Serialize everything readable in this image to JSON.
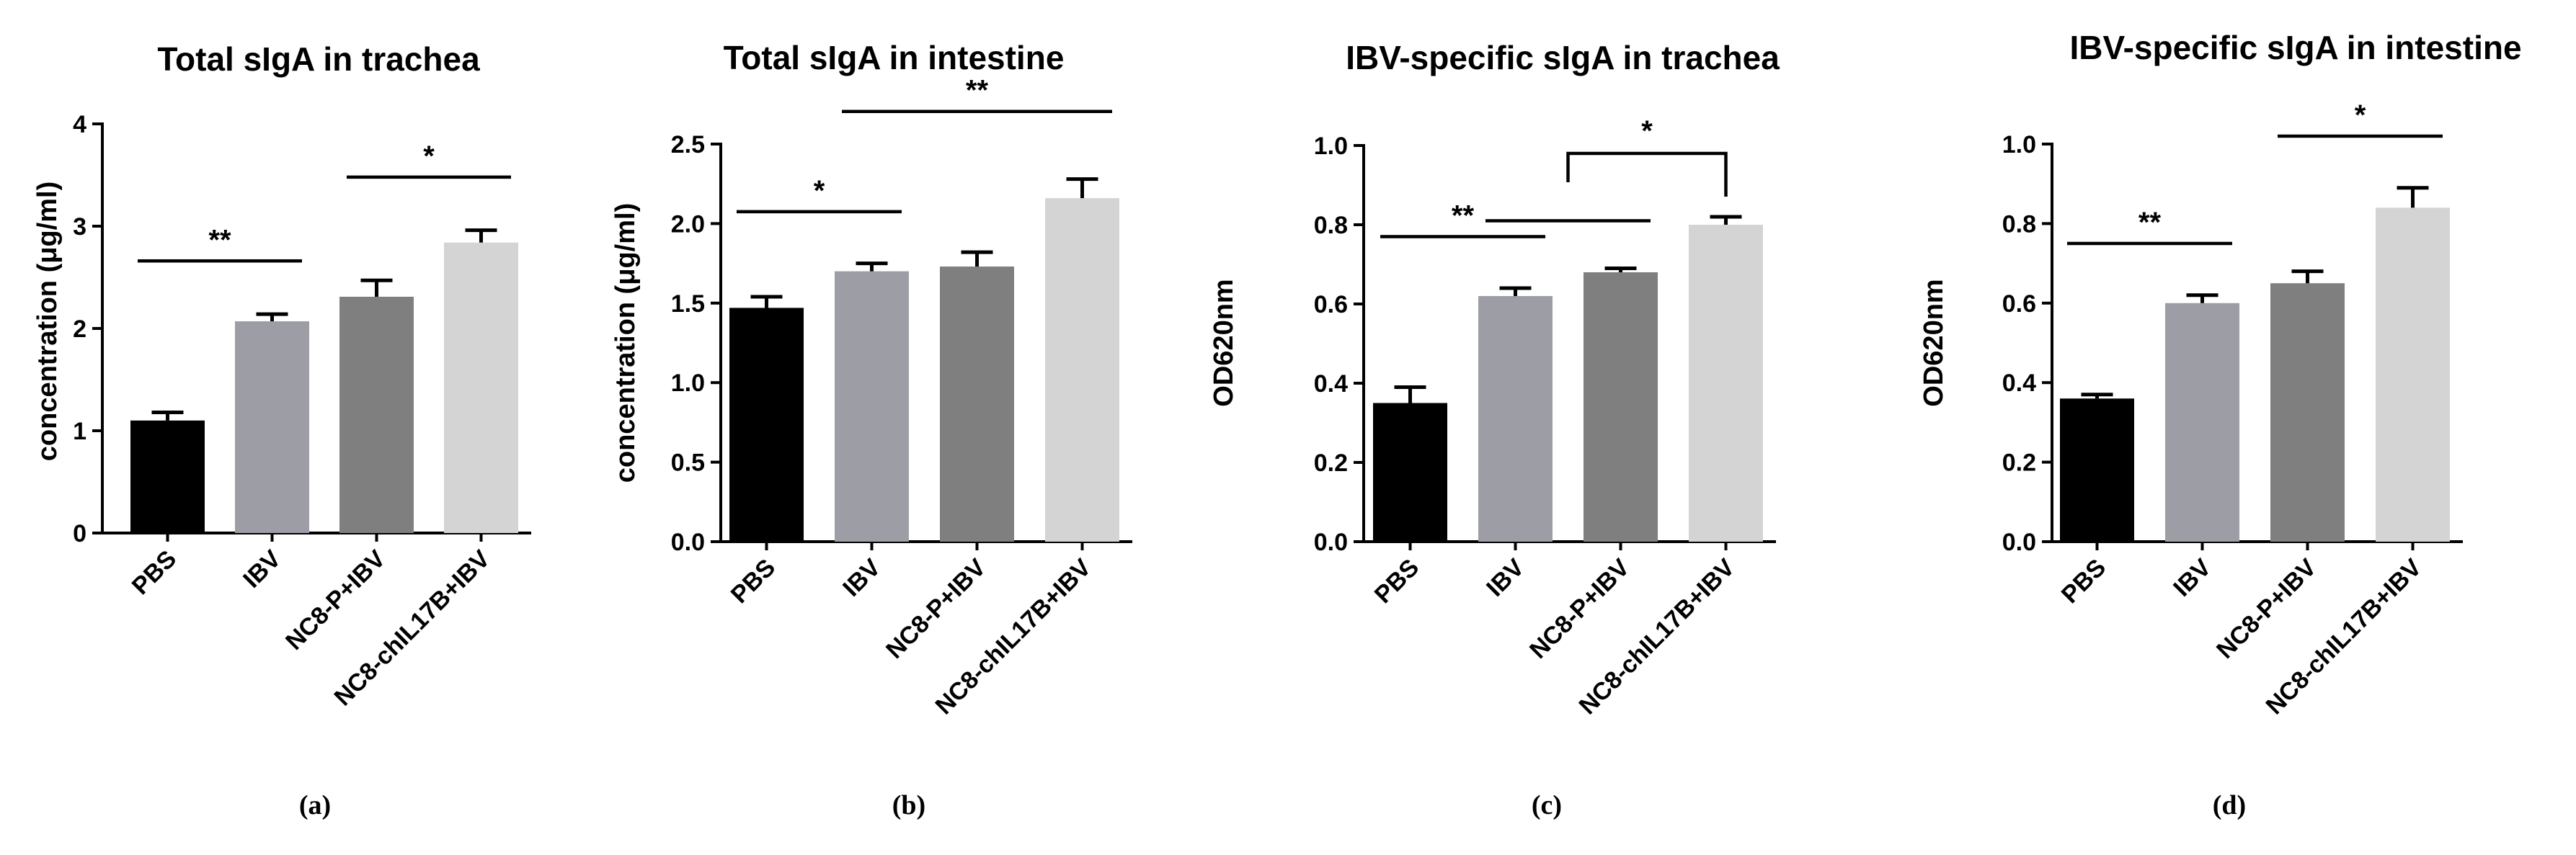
{
  "chart_data": [
    {
      "type": "bar",
      "title": "Total sIgA in trachea",
      "ylabel": "concentration (μg/ml)",
      "xlabel": "",
      "ylim": [
        0,
        4
      ],
      "yticks": [
        "0",
        "1",
        "2",
        "3",
        "4"
      ],
      "categories": [
        "PBS",
        "IBV",
        "NC8-P+IBV",
        "NC8-chIL17B+IBV"
      ],
      "values": [
        1.1,
        2.07,
        2.31,
        2.84
      ],
      "errors": [
        0.08,
        0.07,
        0.16,
        0.12
      ],
      "colors": [
        "#000000",
        "#9d9da5",
        "#7f7f7f",
        "#d4d4d4"
      ],
      "significance": [
        {
          "from": 0,
          "to": 1,
          "label": "**"
        },
        {
          "from": 2,
          "to": 3,
          "label": "*"
        }
      ],
      "panel_label": "(a)"
    },
    {
      "type": "bar",
      "title": "Total sIgA in intestine",
      "ylabel": "concentration (μg/ml)",
      "xlabel": "",
      "ylim": [
        0,
        2.5
      ],
      "yticks": [
        "0.0",
        "0.5",
        "1.0",
        "1.5",
        "2.0",
        "2.5"
      ],
      "categories": [
        "PBS",
        "IBV",
        "NC8-P+IBV",
        "NC8-chIL17B+IBV"
      ],
      "values": [
        1.47,
        1.7,
        1.73,
        2.16
      ],
      "errors": [
        0.07,
        0.05,
        0.09,
        0.12
      ],
      "colors": [
        "#000000",
        "#9d9da5",
        "#7f7f7f",
        "#d4d4d4"
      ],
      "significance": [
        {
          "from": 0,
          "to": 1,
          "label": "*"
        },
        {
          "from": 1,
          "to": 3,
          "label": "**"
        }
      ],
      "panel_label": "(b)"
    },
    {
      "type": "bar",
      "title": "IBV-specific sIgA in trachea",
      "ylabel": "OD620nm",
      "xlabel": "",
      "ylim": [
        0,
        1.0
      ],
      "yticks": [
        "0.0",
        "0.2",
        "0.4",
        "0.6",
        "0.8",
        "1.0"
      ],
      "categories": [
        "PBS",
        "IBV",
        "NC8-P+IBV",
        "NC8-chIL17B+IBV"
      ],
      "values": [
        0.35,
        0.62,
        0.68,
        0.8
      ],
      "errors": [
        0.04,
        0.02,
        0.01,
        0.02
      ],
      "colors": [
        "#000000",
        "#9d9da5",
        "#7f7f7f",
        "#d4d4d4"
      ],
      "significance": [
        {
          "from": 0,
          "to": 1,
          "label": "**"
        },
        {
          "from": 1,
          "to": 2,
          "label": ""
        },
        {
          "from": 1.5,
          "to": 3,
          "label": "*",
          "style": "bracket"
        }
      ],
      "panel_label": "(c)"
    },
    {
      "type": "bar",
      "title": "IBV-specific sIgA in intestine",
      "ylabel": "OD620nm",
      "xlabel": "",
      "ylim": [
        0,
        1.0
      ],
      "yticks": [
        "0.0",
        "0.2",
        "0.4",
        "0.6",
        "0.8",
        "1.0"
      ],
      "categories": [
        "PBS",
        "IBV",
        "NC8-P+IBV",
        "NC8-chIL17B+IBV"
      ],
      "values": [
        0.36,
        0.6,
        0.65,
        0.84
      ],
      "errors": [
        0.01,
        0.02,
        0.03,
        0.05
      ],
      "colors": [
        "#000000",
        "#9d9da5",
        "#7f7f7f",
        "#d4d4d4"
      ],
      "significance": [
        {
          "from": 0,
          "to": 1,
          "label": "**"
        },
        {
          "from": 2,
          "to": 3,
          "label": "*"
        }
      ],
      "panel_label": "(d)"
    }
  ]
}
